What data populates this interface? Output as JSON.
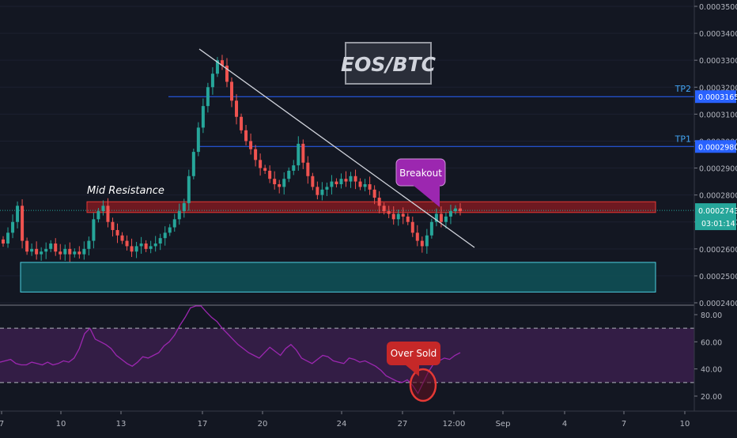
{
  "chart_data": [
    {
      "type": "candlestick",
      "symbol_label": "EOS/BTC",
      "price_axis": {
        "ticks": [
          0.00024,
          0.00025,
          0.00026,
          0.00027,
          0.00028,
          0.00029,
          0.0003,
          0.00031,
          0.00032,
          0.00033,
          0.00034,
          0.00035
        ],
        "tick_labels": [
          "0.0002400",
          "0.0002500",
          "0.0002600",
          "0.0002700",
          "0.0002800",
          "0.0002900",
          "0.0003000",
          "0.0003100",
          "0.0003200",
          "0.0003300",
          "0.0003400",
          "0.0003500"
        ],
        "range": [
          0.000239,
          0.000355
        ]
      },
      "time_axis": {
        "tick_labels": [
          "7",
          "10",
          "13",
          "17",
          "20",
          "24",
          "27",
          "12:00",
          "Sep",
          "4",
          "7",
          "10"
        ]
      },
      "candles_close": [
        0.000262,
        0.000266,
        0.00027,
        0.000276,
        0.000263,
        0.000259,
        0.00026,
        0.000258,
        0.000259,
        0.00026,
        0.000262,
        0.000259,
        0.000258,
        0.00026,
        0.000258,
        0.000259,
        0.000258,
        0.00026,
        0.000263,
        0.000271,
        0.000274,
        0.000276,
        0.00027,
        0.000267,
        0.000265,
        0.000263,
        0.000261,
        0.000259,
        0.000261,
        0.000262,
        0.00026,
        0.000261,
        0.000262,
        0.000264,
        0.000266,
        0.000268,
        0.000271,
        0.000274,
        0.000277,
        0.000287,
        0.000296,
        0.000305,
        0.000313,
        0.00032,
        0.000325,
        0.00033,
        0.000328,
        0.000322,
        0.000315,
        0.000309,
        0.000304,
        0.0003,
        0.000297,
        0.000293,
        0.00029,
        0.000289,
        0.000286,
        0.000284,
        0.000283,
        0.000286,
        0.000289,
        0.000291,
        0.000299,
        0.000292,
        0.000287,
        0.000283,
        0.00028,
        0.000282,
        0.000283,
        0.000285,
        0.000284,
        0.000286,
        0.000285,
        0.000287,
        0.000285,
        0.000283,
        0.000284,
        0.000282,
        0.000279,
        0.000276,
        0.000274,
        0.000273,
        0.000271,
        0.000273,
        0.000272,
        0.00027,
        0.000266,
        0.000263,
        0.000261,
        0.000265,
        0.00027,
        0.000273,
        0.00027,
        0.000272,
        0.000274,
        0.000275,
        0.000274
      ],
      "annotations": [
        {
          "text": "Mid Resistance"
        },
        {
          "text": "Breakout"
        }
      ],
      "levels": [
        {
          "name": "TP2",
          "value": 0.0003165,
          "label": "0.0003165"
        },
        {
          "name": "TP1",
          "value": 0.000298,
          "label": "0.0002980"
        }
      ],
      "zones": [
        {
          "name": "resistance-zone",
          "from": 0.0002735,
          "to": 0.0002775,
          "color": "#8e1b22"
        },
        {
          "name": "support-zone",
          "from": 0.000244,
          "to": 0.000255,
          "color": "#0f4f55"
        }
      ],
      "last_price": {
        "label": "0.0002743",
        "countdown": "03:01:14",
        "value": 0.0002743
      },
      "colors": {
        "up": "#26a69a",
        "down": "#ef5350",
        "background": "#131722",
        "level_line": "#2962ff",
        "trendline": "#d1d4dc"
      }
    },
    {
      "type": "line",
      "indicator": "RSI",
      "axis": {
        "ticks": [
          20,
          40,
          60,
          80
        ],
        "tick_labels": [
          "20.00",
          "40.00",
          "60.00",
          "80.00"
        ],
        "range": [
          12,
          90
        ]
      },
      "overbought": 70,
      "oversold": 30,
      "values": [
        45,
        46,
        47,
        44,
        43,
        43,
        45,
        44,
        43,
        45,
        43,
        44,
        46,
        45,
        48,
        55,
        66,
        70,
        62,
        60,
        58,
        55,
        50,
        47,
        44,
        42,
        45,
        49,
        48,
        50,
        52,
        57,
        60,
        65,
        72,
        78,
        85,
        90,
        88,
        82,
        78,
        75,
        70,
        66,
        62,
        58,
        55,
        52,
        50,
        48,
        52,
        56,
        53,
        50,
        55,
        58,
        54,
        48,
        46,
        44,
        47,
        50,
        49,
        46,
        45,
        44,
        48,
        47,
        45,
        46,
        44,
        42,
        39,
        35,
        33,
        31,
        30,
        32,
        28,
        22,
        30,
        38,
        44,
        46,
        48,
        47,
        50,
        52
      ],
      "annotation": {
        "text": "Over Sold"
      },
      "colors": {
        "line": "#9c27b0",
        "band": "#3a1f4b",
        "guide": "#b2b5be"
      }
    }
  ]
}
